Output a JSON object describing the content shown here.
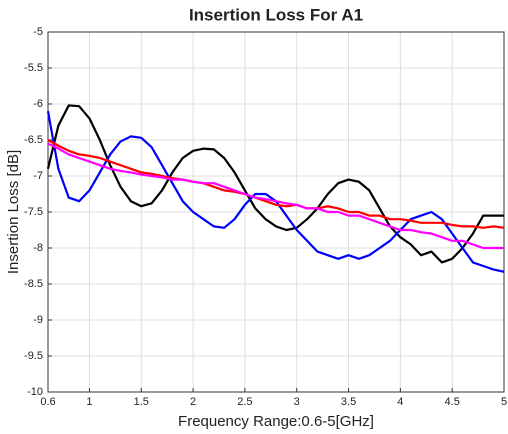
{
  "chart_data": {
    "type": "line",
    "title": "Insertion Loss For A1",
    "x_label": "Frequency Range:0.6-5[GHz]",
    "y_label": "Insertion Loss [dB]",
    "x": [
      0.6,
      0.7,
      0.8,
      0.9,
      1.0,
      1.1,
      1.2,
      1.3,
      1.4,
      1.5,
      1.6,
      1.7,
      1.8,
      1.9,
      2.0,
      2.1,
      2.2,
      2.3,
      2.4,
      2.5,
      2.6,
      2.7,
      2.8,
      2.9,
      3.0,
      3.1,
      3.2,
      3.3,
      3.4,
      3.5,
      3.6,
      3.7,
      3.8,
      3.9,
      4.0,
      4.1,
      4.2,
      4.3,
      4.4,
      4.5,
      4.6,
      4.7,
      4.8,
      4.9,
      5.0
    ],
    "series": [
      {
        "color": "#000000",
        "values": [
          -6.9,
          -6.3,
          -6.02,
          -6.03,
          -6.2,
          -6.5,
          -6.85,
          -7.15,
          -7.35,
          -7.42,
          -7.38,
          -7.2,
          -6.95,
          -6.75,
          -6.65,
          -6.62,
          -6.63,
          -6.75,
          -6.95,
          -7.2,
          -7.45,
          -7.6,
          -7.7,
          -7.75,
          -7.72,
          -7.6,
          -7.45,
          -7.25,
          -7.1,
          -7.05,
          -7.08,
          -7.2,
          -7.45,
          -7.7,
          -7.85,
          -7.95,
          -8.1,
          -8.05,
          -8.2,
          -8.15,
          -8.0,
          -7.8,
          -7.55,
          -7.55,
          -7.55
        ]
      },
      {
        "color": "#0000ff",
        "values": [
          -6.1,
          -6.9,
          -7.3,
          -7.35,
          -7.2,
          -6.95,
          -6.7,
          -6.52,
          -6.45,
          -6.47,
          -6.6,
          -6.85,
          -7.1,
          -7.35,
          -7.5,
          -7.6,
          -7.7,
          -7.72,
          -7.6,
          -7.4,
          -7.25,
          -7.25,
          -7.35,
          -7.55,
          -7.75,
          -7.9,
          -8.05,
          -8.1,
          -8.15,
          -8.1,
          -8.15,
          -8.1,
          -8.0,
          -7.9,
          -7.75,
          -7.6,
          -7.55,
          -7.5,
          -7.6,
          -7.8,
          -8.0,
          -8.2,
          -8.25,
          -8.3,
          -8.33
        ]
      },
      {
        "color": "#ff0000",
        "values": [
          -6.5,
          -6.58,
          -6.65,
          -6.7,
          -6.72,
          -6.75,
          -6.8,
          -6.85,
          -6.9,
          -6.95,
          -6.97,
          -7.0,
          -7.03,
          -7.05,
          -7.08,
          -7.1,
          -7.15,
          -7.2,
          -7.22,
          -7.25,
          -7.3,
          -7.35,
          -7.4,
          -7.42,
          -7.4,
          -7.45,
          -7.45,
          -7.42,
          -7.45,
          -7.5,
          -7.5,
          -7.55,
          -7.55,
          -7.6,
          -7.6,
          -7.62,
          -7.65,
          -7.65,
          -7.65,
          -7.68,
          -7.7,
          -7.7,
          -7.72,
          -7.7,
          -7.72
        ]
      },
      {
        "color": "#ff00ff",
        "values": [
          -6.55,
          -6.62,
          -6.7,
          -6.75,
          -6.8,
          -6.85,
          -6.9,
          -6.93,
          -6.95,
          -6.98,
          -7.0,
          -7.02,
          -7.05,
          -7.05,
          -7.08,
          -7.1,
          -7.1,
          -7.15,
          -7.2,
          -7.25,
          -7.3,
          -7.32,
          -7.35,
          -7.38,
          -7.4,
          -7.45,
          -7.45,
          -7.5,
          -7.5,
          -7.55,
          -7.55,
          -7.6,
          -7.65,
          -7.7,
          -7.75,
          -7.75,
          -7.78,
          -7.8,
          -7.85,
          -7.9,
          -7.9,
          -7.95,
          -8.0,
          -8.0,
          -8.0
        ]
      }
    ],
    "xlim": [
      0.6,
      5
    ],
    "xticks": [
      0.6,
      1,
      1.5,
      2,
      2.5,
      3,
      3.5,
      4,
      4.5,
      5
    ],
    "ylim": [
      -10,
      -5
    ],
    "yticks": [
      -10,
      -9.5,
      -9,
      -8.5,
      -8,
      -7.5,
      -7,
      -6.5,
      -6,
      -5.5,
      -5
    ],
    "grid": true
  }
}
